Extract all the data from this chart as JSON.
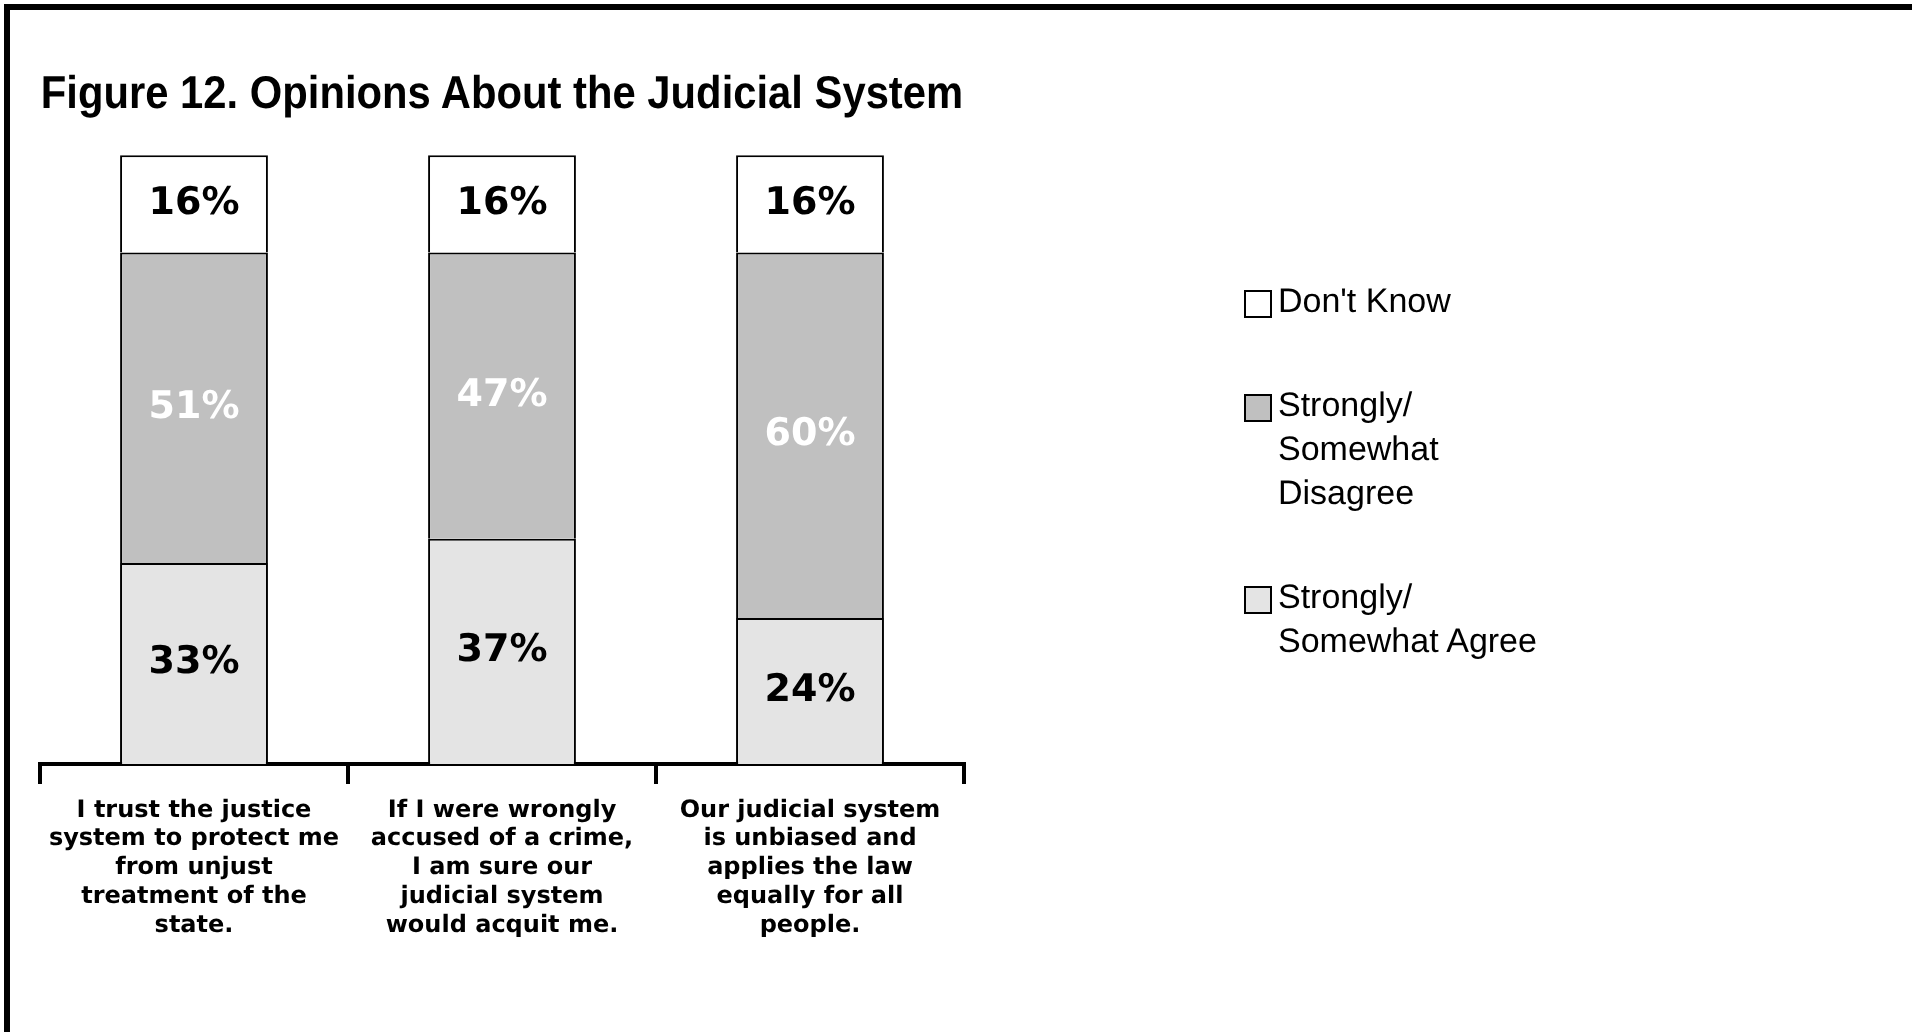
{
  "chart_data": {
    "type": "bar",
    "title": "Figure 12. Opinions About the Judicial System",
    "stacked": true,
    "legend": "right",
    "categories": [
      "I trust the justice system to protect me from unjust treatment of the state.",
      "If I were wrongly accused of a crime, I am sure our judicial system would acquit me.",
      "Our judicial system is unbiased and applies the law equally for all people."
    ],
    "series": [
      {
        "name": "Strongly/ Somewhat Agree",
        "color": "#e4e4e4",
        "values": [
          33,
          37,
          24
        ],
        "value_labels": [
          "33%",
          "37%",
          "24%"
        ]
      },
      {
        "name": "Strongly/ Somewhat Disagree",
        "color": "#c0c0c0",
        "values": [
          51,
          47,
          60
        ],
        "value_labels": [
          "51%",
          "47%",
          "60%"
        ]
      },
      {
        "name": "Don't Know",
        "color": "#ffffff",
        "values": [
          16,
          16,
          16
        ],
        "value_labels": [
          "16%",
          "16%",
          "16%"
        ]
      }
    ]
  }
}
